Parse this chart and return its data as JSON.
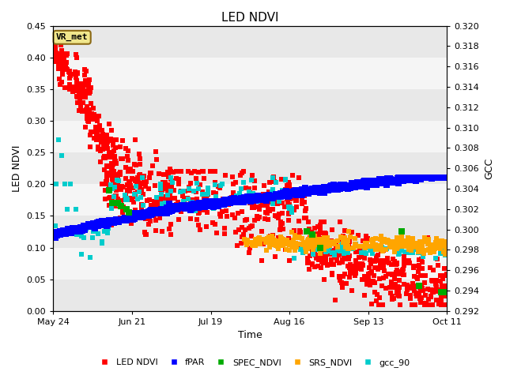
{
  "title": "LED NDVI",
  "xlabel": "Time",
  "ylabel_left": "LED NDVI",
  "ylabel_right": "GCC",
  "ylim_left": [
    0.0,
    0.45
  ],
  "ylim_right": [
    0.292,
    0.32
  ],
  "yticks_left": [
    0.0,
    0.05,
    0.1,
    0.15,
    0.2,
    0.25,
    0.3,
    0.35,
    0.4,
    0.45
  ],
  "yticks_right": [
    0.292,
    0.294,
    0.296,
    0.298,
    0.3,
    0.302,
    0.304,
    0.306,
    0.308,
    0.31,
    0.312,
    0.314,
    0.316,
    0.318,
    0.32
  ],
  "xtick_labels": [
    "May 24",
    "Jun 21",
    "Jul 19",
    "Aug 16",
    "Sep 13",
    "Oct 11"
  ],
  "xtick_positions": [
    0,
    28,
    56,
    84,
    112,
    140
  ],
  "annotation_text": "VR_met",
  "annotation_bbox": {
    "boxstyle": "round,pad=0.3",
    "facecolor": "#f0e68c",
    "edgecolor": "#8b6914"
  },
  "legend": [
    {
      "label": "LED NDVI",
      "color": "#ff0000",
      "marker": "s"
    },
    {
      "label": "fPAR",
      "color": "#0000ff",
      "marker": "s"
    },
    {
      "label": "SPEC_NDVI",
      "color": "#00aa00",
      "marker": "s"
    },
    {
      "label": "SRS_NDVI",
      "color": "#ffa500",
      "marker": "s"
    },
    {
      "label": "gcc_90",
      "color": "#00cccc",
      "marker": "s"
    }
  ],
  "background_color": "#ffffff",
  "plot_bg_color": "#ffffff",
  "band_colors": [
    "#e8e8e8",
    "#f5f5f5"
  ],
  "grid_color": "#ffffff",
  "title_fontsize": 11,
  "axis_label_fontsize": 9,
  "tick_fontsize": 8,
  "marker_size": 5,
  "seed": 42
}
